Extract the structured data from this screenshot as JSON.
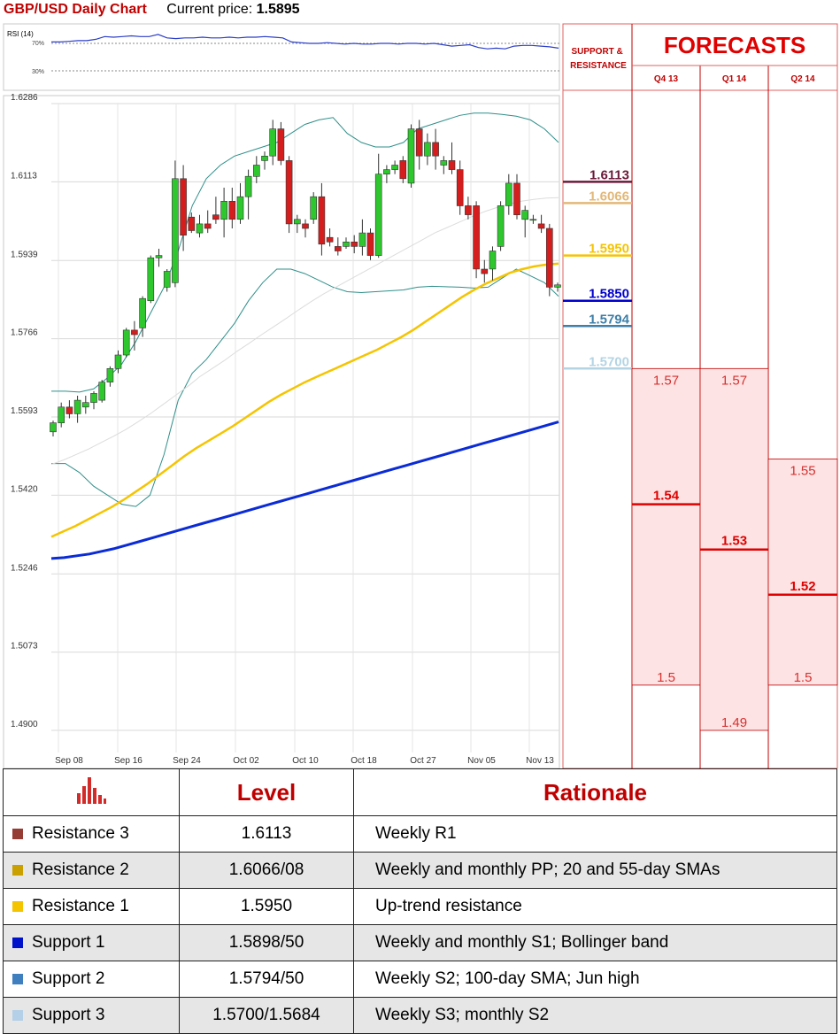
{
  "header": {
    "title": "GBP/USD Daily Chart",
    "current_price_label": "Current price:",
    "current_price": "1.5895"
  },
  "rsi": {
    "label": "RSI (14)",
    "level_high": "70%",
    "level_low": "30%",
    "values": [
      72,
      72,
      73,
      74,
      74,
      76,
      80,
      79,
      80,
      81,
      80,
      80,
      83,
      78,
      77,
      78,
      78,
      79,
      78,
      78,
      79,
      78,
      79,
      79,
      80,
      79,
      78,
      72,
      71,
      70,
      70,
      71,
      70,
      69,
      70,
      69,
      69,
      70,
      70,
      69,
      70,
      70,
      69,
      70,
      68,
      66,
      67,
      68,
      64,
      62,
      63,
      62,
      66,
      67,
      67,
      66,
      65,
      63
    ]
  },
  "side": {
    "sr_header": "SUPPORT & RESISTANCE",
    "forecasts_title": "FORECASTS",
    "quarters": [
      "Q4 13",
      "Q1 14",
      "Q2 14"
    ],
    "levels": [
      {
        "value": "1.6113",
        "price": 1.6113,
        "color": "#6b1a3a"
      },
      {
        "value": "1.6066",
        "price": 1.6066,
        "color": "#e2b878"
      },
      {
        "value": "1.5950",
        "price": 1.595,
        "color": "#f5c400"
      },
      {
        "value": "1.5850",
        "price": 1.585,
        "color": "#0000cc"
      },
      {
        "value": "1.5794",
        "price": 1.5794,
        "color": "#3f7fa8"
      },
      {
        "value": "1.5700",
        "price": 1.57,
        "color": "#b4d4e4"
      }
    ],
    "forecasts": [
      {
        "quarter": "Q4 13",
        "high": "1.57",
        "mid": "1.54",
        "low": "1.5",
        "high_v": 1.57,
        "mid_v": 1.54,
        "low_v": 1.5
      },
      {
        "quarter": "Q1 14",
        "high": "1.57",
        "mid": "1.53",
        "low": "1.49",
        "high_v": 1.57,
        "mid_v": 1.53,
        "low_v": 1.49
      },
      {
        "quarter": "Q2 14",
        "high": "1.55",
        "mid": "1.52",
        "low": "1.5",
        "high_v": 1.55,
        "mid_v": 1.52,
        "low_v": 1.5
      }
    ]
  },
  "chart_data": {
    "type": "candlestick",
    "title": "GBP/USD Daily Chart",
    "ylim": [
      1.49,
      1.6286
    ],
    "y_ticks": [
      "1.6286",
      "1.6113",
      "1.5939",
      "1.5766",
      "1.5593",
      "1.5420",
      "1.5246",
      "1.5073",
      "1.4900"
    ],
    "x_labels": [
      "Sep 08",
      "Sep 16",
      "Sep 24",
      "Oct 02",
      "Oct 10",
      "Oct 18",
      "Oct 27",
      "Nov 05",
      "Nov 13"
    ],
    "candles": [
      [
        1.556,
        1.5585,
        1.555,
        1.558
      ],
      [
        1.558,
        1.5625,
        1.557,
        1.5615
      ],
      [
        1.5615,
        1.563,
        1.559,
        1.56
      ],
      [
        1.56,
        1.564,
        1.558,
        1.563
      ],
      [
        1.5615,
        1.564,
        1.56,
        1.5625
      ],
      [
        1.5625,
        1.565,
        1.561,
        1.5645
      ],
      [
        1.563,
        1.5675,
        1.5625,
        1.567
      ],
      [
        1.567,
        1.5705,
        1.566,
        1.57
      ],
      [
        1.57,
        1.574,
        1.569,
        1.573
      ],
      [
        1.573,
        1.579,
        1.5725,
        1.5785
      ],
      [
        1.5785,
        1.5805,
        1.574,
        1.5775
      ],
      [
        1.579,
        1.586,
        1.577,
        1.5855
      ],
      [
        1.585,
        1.595,
        1.5845,
        1.5945
      ],
      [
        1.5945,
        1.5965,
        1.5925,
        1.595
      ],
      [
        1.588,
        1.592,
        1.587,
        1.5915
      ],
      [
        1.589,
        1.616,
        1.588,
        1.612
      ],
      [
        1.612,
        1.615,
        1.596,
        1.5995
      ],
      [
        1.6035,
        1.6045,
        1.6,
        1.6005
      ],
      [
        1.6,
        1.604,
        1.599,
        1.602
      ],
      [
        1.602,
        1.605,
        1.6,
        1.601
      ],
      [
        1.604,
        1.608,
        1.602,
        1.603
      ],
      [
        1.603,
        1.61,
        1.599,
        1.607
      ],
      [
        1.607,
        1.61,
        1.601,
        1.603
      ],
      [
        1.603,
        1.611,
        1.602,
        1.608
      ],
      [
        1.608,
        1.614,
        1.603,
        1.6125
      ],
      [
        1.6125,
        1.617,
        1.611,
        1.615
      ],
      [
        1.616,
        1.618,
        1.614,
        1.617
      ],
      [
        1.617,
        1.625,
        1.615,
        1.623
      ],
      [
        1.623,
        1.6245,
        1.615,
        1.616
      ],
      [
        1.616,
        1.617,
        1.6,
        1.602
      ],
      [
        1.602,
        1.604,
        1.6,
        1.603
      ],
      [
        1.602,
        1.603,
        1.599,
        1.601
      ],
      [
        1.603,
        1.609,
        1.602,
        1.608
      ],
      [
        1.608,
        1.611,
        1.595,
        1.5975
      ],
      [
        1.599,
        1.601,
        1.597,
        1.598
      ],
      [
        1.597,
        1.599,
        1.595,
        1.596
      ],
      [
        1.597,
        1.599,
        1.5965,
        1.598
      ],
      [
        1.598,
        1.5995,
        1.5955,
        1.597
      ],
      [
        1.597,
        1.603,
        1.595,
        1.6
      ],
      [
        1.6,
        1.601,
        1.594,
        1.595
      ],
      [
        1.595,
        1.6175,
        1.5945,
        1.613
      ],
      [
        1.613,
        1.615,
        1.611,
        1.614
      ],
      [
        1.614,
        1.616,
        1.613,
        1.615
      ],
      [
        1.616,
        1.617,
        1.611,
        1.612
      ],
      [
        1.611,
        1.624,
        1.61,
        1.623
      ],
      [
        1.623,
        1.625,
        1.614,
        1.617
      ],
      [
        1.617,
        1.622,
        1.615,
        1.62
      ],
      [
        1.62,
        1.623,
        1.614,
        1.617
      ],
      [
        1.615,
        1.617,
        1.613,
        1.616
      ],
      [
        1.616,
        1.62,
        1.613,
        1.614
      ],
      [
        1.614,
        1.616,
        1.604,
        1.606
      ],
      [
        1.606,
        1.608,
        1.603,
        1.604
      ],
      [
        1.606,
        1.607,
        1.59,
        1.592
      ],
      [
        1.592,
        1.594,
        1.589,
        1.591
      ],
      [
        1.592,
        1.597,
        1.5895,
        1.596
      ],
      [
        1.597,
        1.607,
        1.596,
        1.606
      ],
      [
        1.606,
        1.613,
        1.604,
        1.611
      ],
      [
        1.611,
        1.613,
        1.603,
        1.604
      ],
      [
        1.603,
        1.606,
        1.599,
        1.605
      ],
      [
        1.603,
        1.604,
        1.602,
        1.603
      ],
      [
        1.602,
        1.604,
        1.6,
        1.601
      ],
      [
        1.601,
        1.602,
        1.586,
        1.588
      ],
      [
        1.588,
        1.589,
        1.587,
        1.5885
      ]
    ],
    "sma20": [
      1.5488,
      1.5498,
      1.551,
      1.5522,
      1.5536,
      1.555,
      1.5565,
      1.5582,
      1.56,
      1.562,
      1.564,
      1.566,
      1.5682,
      1.57,
      1.5718,
      1.5738,
      1.5756,
      1.5775,
      1.5793,
      1.5811,
      1.583,
      1.5848,
      1.5865,
      1.588,
      1.5895,
      1.591,
      1.5925,
      1.594,
      1.5955,
      1.597,
      1.5985,
      1.6,
      1.6012,
      1.6024,
      1.6036,
      1.6047,
      1.6056,
      1.6064,
      1.607,
      1.6074,
      1.6077,
      1.6078
    ],
    "sma55": [
      1.5328,
      1.534,
      1.5352,
      1.5366,
      1.538,
      1.5394,
      1.541,
      1.5428,
      1.5446,
      1.5466,
      1.5486,
      1.5506,
      1.5524,
      1.554,
      1.5556,
      1.5572,
      1.559,
      1.5608,
      1.5626,
      1.5642,
      1.5656,
      1.567,
      1.5682,
      1.5694,
      1.5706,
      1.5718,
      1.573,
      1.5742,
      1.5756,
      1.577,
      1.5786,
      1.5804,
      1.5822,
      1.584,
      1.5858,
      1.5874,
      1.5888,
      1.59,
      1.5912,
      1.592,
      1.5926,
      1.593,
      1.5932
    ],
    "sma200": [
      1.528,
      1.5282,
      1.5286,
      1.529,
      1.5296,
      1.5302,
      1.531,
      1.5318,
      1.5326,
      1.5334,
      1.5342,
      1.535,
      1.5358,
      1.5366,
      1.5374,
      1.5382,
      1.539,
      1.5398,
      1.5406,
      1.5414,
      1.5422,
      1.543,
      1.5438,
      1.5446,
      1.5454,
      1.5462,
      1.547,
      1.5478,
      1.5486,
      1.5494,
      1.5502,
      1.551,
      1.5518,
      1.5526,
      1.5534,
      1.5542,
      1.555,
      1.5558,
      1.5566,
      1.5574,
      1.5582
    ],
    "bb_upper": [
      1.565,
      1.565,
      1.5648,
      1.5655,
      1.568,
      1.571,
      1.576,
      1.582,
      1.588,
      1.596,
      1.606,
      1.612,
      1.615,
      1.617,
      1.618,
      1.619,
      1.62,
      1.622,
      1.624,
      1.625,
      1.6255,
      1.622,
      1.62,
      1.619,
      1.619,
      1.62,
      1.623,
      1.624,
      1.625,
      1.626,
      1.6265,
      1.6265,
      1.6262,
      1.6258,
      1.625,
      1.623,
      1.62
    ],
    "bb_lower": [
      1.549,
      1.549,
      1.547,
      1.544,
      1.542,
      1.54,
      1.5395,
      1.542,
      1.551,
      1.563,
      1.569,
      1.572,
      1.576,
      1.58,
      1.585,
      1.589,
      1.592,
      1.592,
      1.591,
      1.5895,
      1.588,
      1.587,
      1.5868,
      1.587,
      1.5872,
      1.5874,
      1.588,
      1.5882,
      1.5881,
      1.588,
      1.5878,
      1.588,
      1.59,
      1.592,
      1.5905,
      1.589,
      1.586
    ]
  },
  "table": {
    "headers": {
      "level": "Level",
      "rationale": "Rationale"
    },
    "rows": [
      {
        "name": "Resistance 3",
        "level": "1.6113",
        "rationale": "Weekly R1",
        "color": "#973b35"
      },
      {
        "name": "Resistance 2",
        "level": "1.6066/08",
        "rationale": "Weekly and monthly PP; 20 and 55-day SMAs",
        "color": "#c9a000"
      },
      {
        "name": "Resistance 1",
        "level": "1.5950",
        "rationale": "Up-trend resistance",
        "color": "#f5c400"
      },
      {
        "name": "Support 1",
        "level": "1.5898/50",
        "rationale": "Weekly and monthly S1; Bollinger band",
        "color": "#0011cc"
      },
      {
        "name": "Support 2",
        "level": "1.5794/50",
        "rationale": "Weekly S2; 100-day SMA; Jun high",
        "color": "#3f7fc0"
      },
      {
        "name": "Support 3",
        "level": "1.5700/1.5684",
        "rationale": "Weekly S3; monthly S2",
        "color": "#b4cfe8"
      }
    ]
  }
}
